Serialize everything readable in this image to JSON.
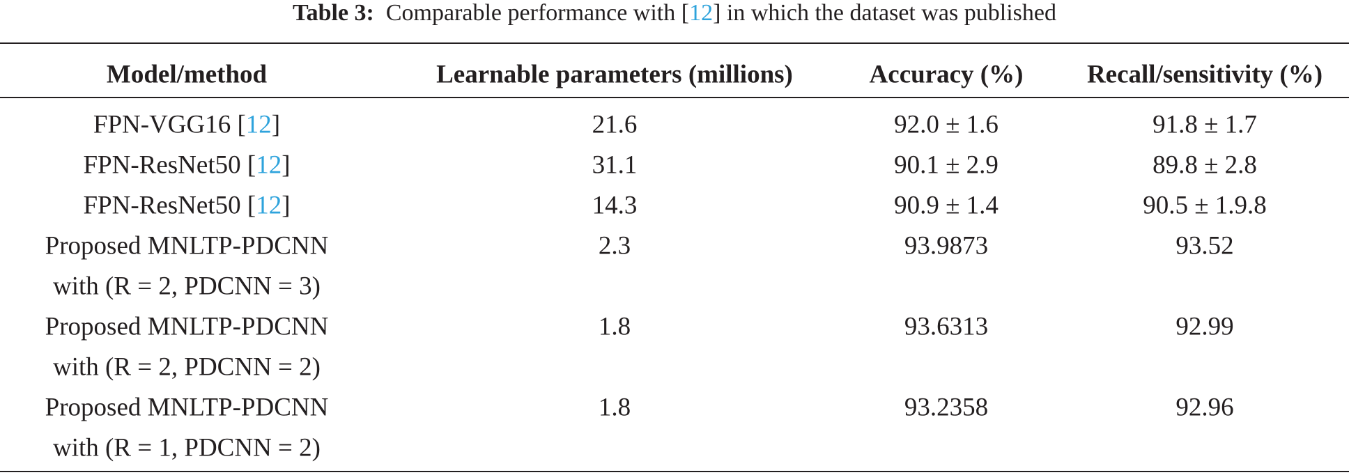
{
  "title": {
    "label": "Table 3:",
    "text": [
      "Comparable performance with [",
      "12",
      "] in which the dataset was published"
    ]
  },
  "table": {
    "header": [
      "Model/method",
      "Learnable parameters (millions)",
      "Accuracy (%)",
      "Recall/sensitivity (%)"
    ],
    "rows": [
      {
        "model": [
          [
            "FPN-VGG16 [",
            "12",
            "]"
          ]
        ],
        "params": "21.6",
        "accuracy": "92.0 ± 1.6",
        "recall": "91.8 ± 1.7"
      },
      {
        "model": [
          [
            "FPN-ResNet50 [",
            "12",
            "]"
          ]
        ],
        "params": "31.1",
        "accuracy": "90.1 ± 2.9",
        "recall": "89.8 ± 2.8"
      },
      {
        "model": [
          [
            "FPN-ResNet50 [",
            "12",
            "]"
          ]
        ],
        "params": "14.3",
        "accuracy": "90.9 ± 1.4",
        "recall": "90.5 ± 1.9.8"
      },
      {
        "model": [
          [
            "Proposed MNLTP-PDCNN"
          ],
          [
            "with (R = 2, PDCNN = 3)"
          ]
        ],
        "params": "2.3",
        "accuracy": "93.9873",
        "recall": "93.52"
      },
      {
        "model": [
          [
            "Proposed MNLTP-PDCNN"
          ],
          [
            "with (R = 2, PDCNN = 2)"
          ]
        ],
        "params": "1.8",
        "accuracy": "93.6313",
        "recall": "92.99"
      },
      {
        "model": [
          [
            "Proposed MNLTP-PDCNN"
          ],
          [
            "with (R = 1, PDCNN = 2)"
          ]
        ],
        "params": "1.8",
        "accuracy": "93.2358",
        "recall": "92.96"
      }
    ]
  }
}
